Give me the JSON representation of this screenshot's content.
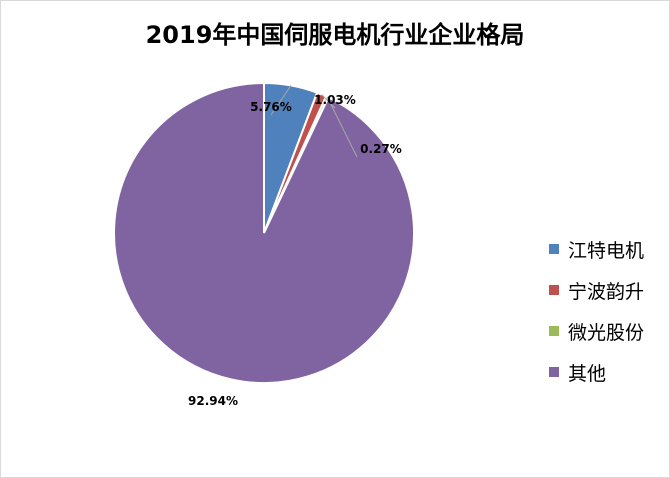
{
  "chart_data": {
    "type": "pie",
    "title": "2019年中国伺服电机行业企业格局",
    "slices": [
      {
        "name": "江特电机",
        "value": 5.76,
        "label": "5.76%",
        "color": "#4f81bd"
      },
      {
        "name": "宁波韵升",
        "value": 1.03,
        "label": "1.03%",
        "color": "#c0504d"
      },
      {
        "name": "微光股份",
        "value": 0.27,
        "label": "0.27%",
        "color": "#9bbb59"
      },
      {
        "name": "其他",
        "value": 92.94,
        "label": "92.94%",
        "color": "#8064a2"
      }
    ],
    "legend_position": "right",
    "start_angle": "12 o'clock, clockwise"
  }
}
